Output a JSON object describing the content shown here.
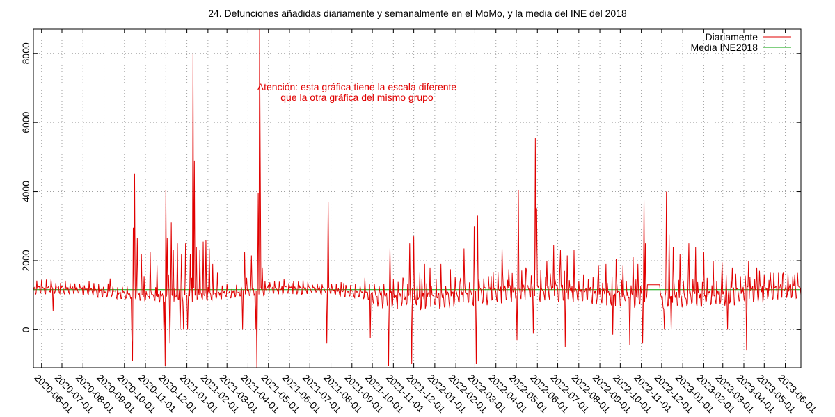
{
  "chart_data": {
    "type": "line",
    "title": "24. Defunciones añadidas diariamente y semanalmente en el MoMo, y la media del INE del 2018",
    "xlabel": "",
    "ylabel": "",
    "ylim": [
      -1100,
      8700
    ],
    "xlim": [
      "2020-05-20",
      "2023-06-24"
    ],
    "y_ticks": [
      0,
      2000,
      4000,
      6000,
      8000
    ],
    "x_ticks": [
      "2020-06-01",
      "2020-07-01",
      "2020-08-01",
      "2020-09-01",
      "2020-10-01",
      "2020-11-01",
      "2020-12-01",
      "2021-01-01",
      "2021-02-01",
      "2021-03-01",
      "2021-04-01",
      "2021-05-01",
      "2021-06-01",
      "2021-07-01",
      "2021-08-01",
      "2021-09-01",
      "2021-10-01",
      "2021-11-01",
      "2021-12-01",
      "2022-01-01",
      "2022-02-01",
      "2022-03-01",
      "2022-04-01",
      "2022-05-01",
      "2022-06-01",
      "2022-07-01",
      "2022-08-01",
      "2022-09-01",
      "2022-10-01",
      "2022-11-01",
      "2022-12-01",
      "2023-01-01",
      "2023-02-01",
      "2023-03-01",
      "2023-04-01",
      "2023-05-01",
      "2023-06-01"
    ],
    "grid": true,
    "legend_position": "top-right",
    "annotation": {
      "lines": [
        "Atención: esta gráfica tiene la escala diferente",
        "que la otra gráfica del mismo grupo"
      ],
      "color": "#e00000"
    },
    "series": [
      {
        "name": "Diariamente",
        "color": "#e00000",
        "baseline": 1100,
        "spikes": [
          {
            "date": "2020-06-18",
            "value": 550
          },
          {
            "date": "2020-09-10",
            "value": 1480
          },
          {
            "date": "2020-10-12",
            "value": -300
          },
          {
            "date": "2020-10-13",
            "value": -900
          },
          {
            "date": "2020-10-14",
            "value": 2950
          },
          {
            "date": "2020-10-16",
            "value": 4520
          },
          {
            "date": "2020-10-20",
            "value": 2650
          },
          {
            "date": "2020-10-26",
            "value": 2200
          },
          {
            "date": "2020-10-30",
            "value": 1550
          },
          {
            "date": "2020-11-08",
            "value": 2250
          },
          {
            "date": "2020-11-18",
            "value": 1850
          },
          {
            "date": "2020-11-28",
            "value": 0
          },
          {
            "date": "2020-11-30",
            "value": -1050
          },
          {
            "date": "2020-12-01",
            "value": 4050
          },
          {
            "date": "2020-12-03",
            "value": 2650
          },
          {
            "date": "2020-12-05",
            "value": 1600
          },
          {
            "date": "2020-12-07",
            "value": -400
          },
          {
            "date": "2020-12-09",
            "value": 3100
          },
          {
            "date": "2020-12-12",
            "value": 2300
          },
          {
            "date": "2020-12-18",
            "value": 2500
          },
          {
            "date": "2020-12-22",
            "value": 0
          },
          {
            "date": "2020-12-24",
            "value": 2200
          },
          {
            "date": "2020-12-27",
            "value": 0
          },
          {
            "date": "2020-12-30",
            "value": 2500
          },
          {
            "date": "2021-01-02",
            "value": 0
          },
          {
            "date": "2021-01-06",
            "value": 2200
          },
          {
            "date": "2021-01-08",
            "value": 1500
          },
          {
            "date": "2021-01-10",
            "value": 7980
          },
          {
            "date": "2021-01-12",
            "value": 4900
          },
          {
            "date": "2021-01-15",
            "value": 2400
          },
          {
            "date": "2021-01-20",
            "value": 2300
          },
          {
            "date": "2021-01-25",
            "value": 2550
          },
          {
            "date": "2021-01-29",
            "value": 2600
          },
          {
            "date": "2021-02-03",
            "value": 2350
          },
          {
            "date": "2021-02-08",
            "value": 1900
          },
          {
            "date": "2021-02-15",
            "value": 1650
          },
          {
            "date": "2021-03-08",
            "value": 1150
          },
          {
            "date": "2021-03-15",
            "value": 1300
          },
          {
            "date": "2021-03-24",
            "value": 0
          },
          {
            "date": "2021-03-27",
            "value": 2250
          },
          {
            "date": "2021-03-30",
            "value": 1500
          },
          {
            "date": "2021-04-06",
            "value": 2150
          },
          {
            "date": "2021-04-12",
            "value": 0
          },
          {
            "date": "2021-04-14",
            "value": -1100
          },
          {
            "date": "2021-04-16",
            "value": 3950
          },
          {
            "date": "2021-04-18",
            "value": 8700
          },
          {
            "date": "2021-04-19",
            "value": 5000
          },
          {
            "date": "2021-04-22",
            "value": 1800
          },
          {
            "date": "2021-05-01",
            "value": 1300
          },
          {
            "date": "2021-06-05",
            "value": 1350
          },
          {
            "date": "2021-07-05",
            "value": 1300
          },
          {
            "date": "2021-07-26",
            "value": -400
          },
          {
            "date": "2021-07-28",
            "value": 3700
          },
          {
            "date": "2021-08-20",
            "value": 1350
          },
          {
            "date": "2021-09-20",
            "value": 1500
          },
          {
            "date": "2021-09-28",
            "value": -250
          },
          {
            "date": "2021-10-25",
            "value": -1050
          },
          {
            "date": "2021-10-27",
            "value": 2350
          },
          {
            "date": "2021-11-16",
            "value": 1450
          },
          {
            "date": "2021-11-25",
            "value": 2500
          },
          {
            "date": "2021-11-28",
            "value": -1000
          },
          {
            "date": "2021-12-01",
            "value": 2700
          },
          {
            "date": "2021-12-10",
            "value": 1650
          },
          {
            "date": "2021-12-17",
            "value": 1900
          },
          {
            "date": "2021-12-25",
            "value": 1800
          },
          {
            "date": "2022-01-10",
            "value": 1900
          },
          {
            "date": "2022-01-24",
            "value": 1750
          },
          {
            "date": "2022-02-08",
            "value": 1500
          },
          {
            "date": "2022-02-13",
            "value": 2350
          },
          {
            "date": "2022-02-28",
            "value": 3000
          },
          {
            "date": "2022-03-03",
            "value": -1000
          },
          {
            "date": "2022-03-05",
            "value": 3300
          },
          {
            "date": "2022-03-25",
            "value": 1550
          },
          {
            "date": "2022-04-10",
            "value": 2350
          },
          {
            "date": "2022-04-20",
            "value": 1750
          },
          {
            "date": "2022-05-02",
            "value": -300
          },
          {
            "date": "2022-05-04",
            "value": 4050
          },
          {
            "date": "2022-05-15",
            "value": 1800
          },
          {
            "date": "2022-05-26",
            "value": -100
          },
          {
            "date": "2022-05-29",
            "value": 5550
          },
          {
            "date": "2022-05-31",
            "value": 3500
          },
          {
            "date": "2022-06-15",
            "value": 2000
          },
          {
            "date": "2022-06-25",
            "value": 2450
          },
          {
            "date": "2022-07-05",
            "value": 2300
          },
          {
            "date": "2022-07-12",
            "value": -500
          },
          {
            "date": "2022-07-15",
            "value": 2150
          },
          {
            "date": "2022-07-25",
            "value": 2300
          },
          {
            "date": "2022-08-08",
            "value": 1600
          },
          {
            "date": "2022-08-30",
            "value": 1850
          },
          {
            "date": "2022-09-10",
            "value": 1900
          },
          {
            "date": "2022-09-20",
            "value": -150
          },
          {
            "date": "2022-09-25",
            "value": 2050
          },
          {
            "date": "2022-10-05",
            "value": 1850
          },
          {
            "date": "2022-10-15",
            "value": -450
          },
          {
            "date": "2022-10-20",
            "value": 2100
          },
          {
            "date": "2022-10-27",
            "value": 1900
          },
          {
            "date": "2022-11-03",
            "value": -400
          },
          {
            "date": "2022-11-05",
            "value": 3750
          },
          {
            "date": "2022-11-07",
            "value": 2500
          },
          {
            "date": "2022-11-10",
            "value": 1300
          },
          {
            "date": "2022-11-25",
            "value": 1300
          },
          {
            "date": "2022-12-05",
            "value": 0
          },
          {
            "date": "2022-12-08",
            "value": 4000
          },
          {
            "date": "2022-12-12",
            "value": 2750
          },
          {
            "date": "2022-12-15",
            "value": 0
          },
          {
            "date": "2022-12-18",
            "value": 2400
          },
          {
            "date": "2022-12-28",
            "value": 2200
          },
          {
            "date": "2023-01-10",
            "value": 2500
          },
          {
            "date": "2023-01-20",
            "value": 2400
          },
          {
            "date": "2023-02-01",
            "value": 2250
          },
          {
            "date": "2023-02-15",
            "value": 2000
          },
          {
            "date": "2023-02-28",
            "value": 1950
          },
          {
            "date": "2023-03-08",
            "value": 0
          },
          {
            "date": "2023-03-15",
            "value": 1800
          },
          {
            "date": "2023-04-05",
            "value": -600
          },
          {
            "date": "2023-04-08",
            "value": 2000
          },
          {
            "date": "2023-04-20",
            "value": 1800
          },
          {
            "date": "2023-05-10",
            "value": 1650
          },
          {
            "date": "2023-05-28",
            "value": 1600
          },
          {
            "date": "2023-06-15",
            "value": 1600
          }
        ]
      },
      {
        "name": "Media INE2018",
        "color": "#00a000",
        "value": 1160
      }
    ]
  }
}
